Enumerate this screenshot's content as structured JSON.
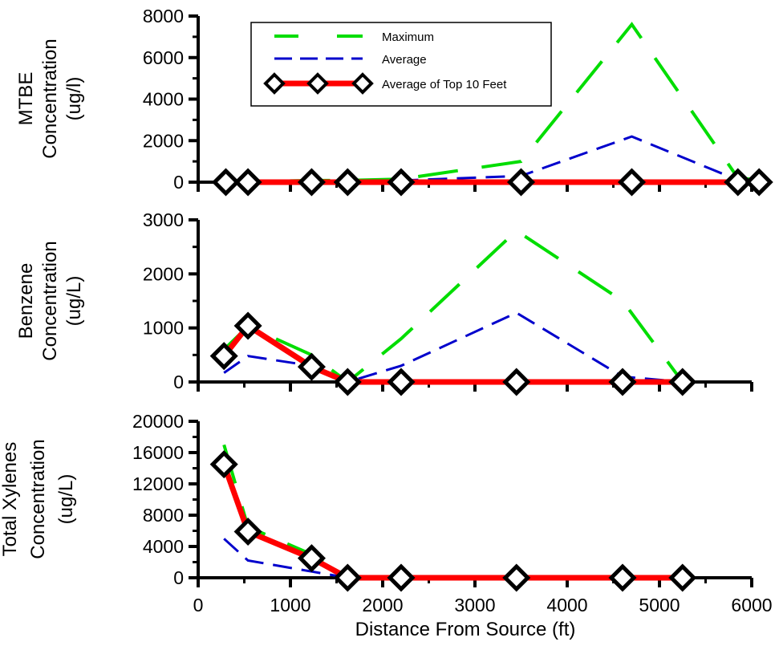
{
  "colors": {
    "maximum": "#00dd00",
    "average": "#0000cc",
    "top10": "#ff0000",
    "marker": "#000000",
    "axis": "#000000"
  },
  "chart_data": [
    {
      "id": "mtbe",
      "type": "line",
      "ylabel": [
        "MTBE",
        "Concentration",
        "(ug/l)"
      ],
      "xlim": [
        0,
        6000
      ],
      "ylim": [
        0,
        8000
      ],
      "yticks": [
        0,
        2000,
        4000,
        6000,
        8000
      ],
      "xticks": [
        0,
        1000,
        2000,
        3000,
        4000,
        5000,
        6000
      ],
      "x_tick_labels_shown": false,
      "series": [
        {
          "key": "maximum",
          "name": "Maximum",
          "style": "long-dash",
          "x": [
            300,
            540,
            1230,
            1620,
            2200,
            3500,
            4700,
            5850,
            6080
          ],
          "y": [
            20,
            30,
            80,
            80,
            150,
            1000,
            7600,
            200,
            100
          ]
        },
        {
          "key": "average",
          "name": "Average",
          "style": "short-dash",
          "x": [
            300,
            540,
            1230,
            1620,
            2200,
            3500,
            4700,
            5850,
            6080
          ],
          "y": [
            10,
            15,
            30,
            40,
            80,
            300,
            2200,
            100,
            50
          ]
        },
        {
          "key": "top10",
          "name": "Average of Top 10 Feet",
          "style": "solid-marker",
          "x": [
            300,
            540,
            1230,
            1620,
            2200,
            3500,
            4700,
            5850,
            6080
          ],
          "y": [
            0,
            0,
            0,
            0,
            0,
            0,
            0,
            0,
            0
          ]
        }
      ],
      "legend": {
        "position": "top-left",
        "entries": [
          "Maximum",
          "Average",
          "Average of Top 10 Feet"
        ]
      }
    },
    {
      "id": "benzene",
      "type": "line",
      "ylabel": [
        "Benzene",
        "Concentration",
        "(ug/L)"
      ],
      "xlim": [
        0,
        6000
      ],
      "ylim": [
        0,
        3000
      ],
      "yticks": [
        0,
        1000,
        2000,
        3000
      ],
      "xticks": [
        0,
        1000,
        2000,
        3000,
        4000,
        5000,
        6000
      ],
      "x_tick_labels_shown": false,
      "series": [
        {
          "key": "maximum",
          "name": "Maximum",
          "style": "long-dash",
          "x": [
            280,
            540,
            1230,
            1620,
            2200,
            3450,
            4600,
            5250
          ],
          "y": [
            600,
            1030,
            500,
            0,
            800,
            2800,
            1500,
            0
          ]
        },
        {
          "key": "average",
          "name": "Average",
          "style": "short-dash",
          "x": [
            280,
            540,
            1230,
            1620,
            2200,
            3450,
            4600,
            5250
          ],
          "y": [
            170,
            480,
            300,
            0,
            300,
            1280,
            100,
            0
          ]
        },
        {
          "key": "top10",
          "name": "Average of Top 10 Feet",
          "style": "solid-marker",
          "x": [
            280,
            540,
            1230,
            1620,
            2200,
            3450,
            4600,
            5250
          ],
          "y": [
            480,
            1040,
            280,
            0,
            0,
            0,
            0,
            0
          ]
        }
      ]
    },
    {
      "id": "xylenes",
      "type": "line",
      "ylabel": [
        "Total Xylenes",
        "Concentration",
        "(ug/L)"
      ],
      "xlabel": "Distance From Source (ft)",
      "xlim": [
        0,
        6000
      ],
      "ylim": [
        0,
        20000
      ],
      "yticks": [
        0,
        4000,
        8000,
        12000,
        16000,
        20000
      ],
      "xticks": [
        0,
        1000,
        2000,
        3000,
        4000,
        5000,
        6000
      ],
      "x_tick_labels_shown": true,
      "series": [
        {
          "key": "maximum",
          "name": "Maximum",
          "style": "long-dash",
          "x": [
            280,
            540,
            1230,
            1620,
            2200,
            3450,
            4600,
            5250
          ],
          "y": [
            17000,
            6500,
            3000,
            0,
            0,
            0,
            0,
            0
          ]
        },
        {
          "key": "average",
          "name": "Average",
          "style": "short-dash",
          "x": [
            280,
            540,
            1230,
            1620,
            2200,
            3450,
            4600,
            5250
          ],
          "y": [
            5000,
            2200,
            800,
            0,
            0,
            0,
            0,
            0
          ]
        },
        {
          "key": "top10",
          "name": "Average of Top 10 Feet",
          "style": "solid-marker",
          "x": [
            280,
            540,
            1230,
            1620,
            2200,
            3450,
            4600,
            5250
          ],
          "y": [
            14500,
            5900,
            2500,
            0,
            0,
            0,
            0,
            0
          ]
        }
      ]
    }
  ]
}
